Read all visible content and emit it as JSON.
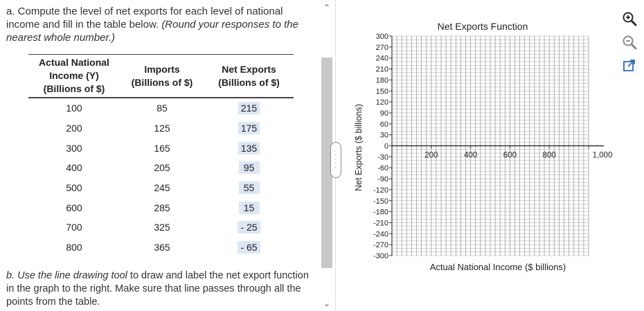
{
  "question_a": {
    "text": "a. Compute the level of net exports for each level of national income and fill in the table below.",
    "italic": "(Round your responses to the nearest whole number.)"
  },
  "table": {
    "headers": [
      "Actual National Income (Y) (Billions of $)",
      "Imports (Billions of $)",
      "Net Exports (Billions of $)"
    ],
    "rows": [
      {
        "income": "100",
        "imports": "85",
        "net_exports": "215"
      },
      {
        "income": "200",
        "imports": "125",
        "net_exports": "175"
      },
      {
        "income": "300",
        "imports": "165",
        "net_exports": "135"
      },
      {
        "income": "400",
        "imports": "205",
        "net_exports": "95"
      },
      {
        "income": "500",
        "imports": "245",
        "net_exports": "55"
      },
      {
        "income": "600",
        "imports": "285",
        "net_exports": "15"
      },
      {
        "income": "700",
        "imports": "325",
        "net_exports": "- 25"
      },
      {
        "income": "800",
        "imports": "365",
        "net_exports": "- 65"
      }
    ]
  },
  "question_b": {
    "italic": "b. Use the line drawing tool",
    "text": " to draw and label the net export function in the graph to the right. Make sure that line passes through all the points from the table."
  },
  "graph": {
    "title": "Net Exports Function",
    "xlabel": "Actual National Income ($ billions)",
    "ylabel": "Net Exports ($ billions)",
    "x_ticks": [
      "200",
      "400",
      "600",
      "800",
      "1,000"
    ],
    "y_ticks": [
      "300",
      "270",
      "240",
      "210",
      "180",
      "150",
      "120",
      "90",
      "60",
      "30",
      "0",
      "-30",
      "-60",
      "-90",
      "-120",
      "-150",
      "-180",
      "-210",
      "-240",
      "-270",
      "-300"
    ]
  },
  "tools": [
    "zoom-in-icon",
    "zoom-out-icon",
    "pop-out-icon"
  ],
  "colors": {
    "answer_box": "#dce6f5",
    "grid": "#999999"
  }
}
